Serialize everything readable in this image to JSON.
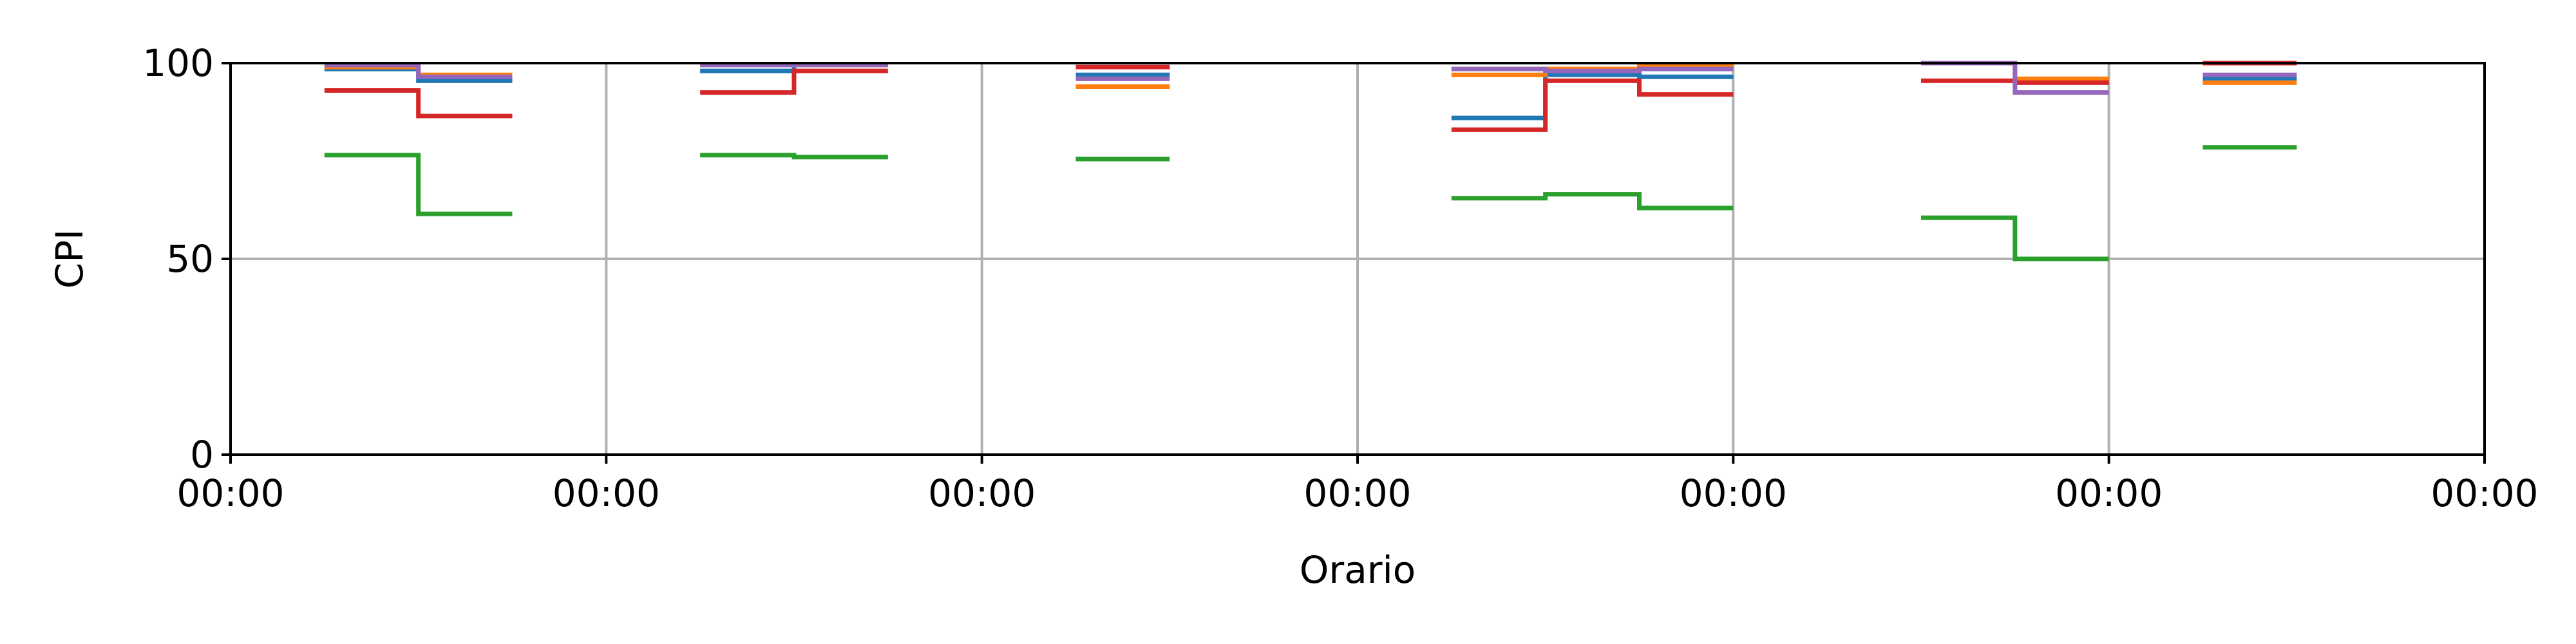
{
  "chart_data": {
    "type": "line",
    "step": "post",
    "title": "",
    "xlabel": "Orario",
    "ylabel": "CPI",
    "xlim": [
      0,
      72
    ],
    "ylim": [
      0,
      100
    ],
    "x_ticks": [
      0,
      12,
      24,
      36,
      48,
      60,
      72
    ],
    "x_tick_labels": [
      "00:00",
      "00:00",
      "00:00",
      "00:00",
      "00:00",
      "00:00",
      "00:00"
    ],
    "y_ticks": [
      0,
      50,
      100
    ],
    "y_tick_labels": [
      "0",
      "50",
      "100"
    ],
    "grid": true,
    "legend": null,
    "series": [
      {
        "color": "#1f77b4",
        "segments": [
          {
            "x": [
              3,
              6,
              9
            ],
            "y": [
              98.5,
              95.5,
              95.5
            ]
          },
          {
            "x": [
              15,
              18,
              21
            ],
            "y": [
              98,
              99.5,
              99.5
            ]
          },
          {
            "x": [
              27,
              30
            ],
            "y": [
              97,
              97
            ]
          },
          {
            "x": [
              39,
              42,
              45,
              48
            ],
            "y": [
              86,
              97,
              96.5,
              96.5
            ]
          },
          {
            "x": [
              63,
              66
            ],
            "y": [
              96,
              96
            ]
          }
        ]
      },
      {
        "color": "#ff7f0e",
        "segments": [
          {
            "x": [
              3,
              6,
              9
            ],
            "y": [
              99,
              97,
              97
            ]
          },
          {
            "x": [
              15,
              18,
              21
            ],
            "y": [
              99.5,
              99.5,
              99.5
            ]
          },
          {
            "x": [
              27,
              30
            ],
            "y": [
              94,
              94
            ]
          },
          {
            "x": [
              39,
              42,
              45,
              48
            ],
            "y": [
              97,
              98.5,
              99.5,
              99.5
            ]
          },
          {
            "x": [
              54,
              57,
              60
            ],
            "y": [
              100,
              96,
              96
            ]
          },
          {
            "x": [
              63,
              66
            ],
            "y": [
              95,
              95
            ]
          }
        ]
      },
      {
        "color": "#2ca02c",
        "segments": [
          {
            "x": [
              3,
              6,
              9
            ],
            "y": [
              76.5,
              61.5,
              61.5
            ]
          },
          {
            "x": [
              15,
              18,
              21
            ],
            "y": [
              76.5,
              76,
              76
            ]
          },
          {
            "x": [
              27,
              30
            ],
            "y": [
              75.5,
              75.5
            ]
          },
          {
            "x": [
              39,
              42,
              45,
              48
            ],
            "y": [
              65.5,
              66.5,
              63,
              63
            ]
          },
          {
            "x": [
              54,
              57,
              60
            ],
            "y": [
              60.5,
              50,
              50
            ]
          },
          {
            "x": [
              63,
              66
            ],
            "y": [
              78.5,
              78.5
            ]
          }
        ]
      },
      {
        "color": "#d62728",
        "segments": [
          {
            "x": [
              3,
              6,
              9
            ],
            "y": [
              93,
              86.5,
              86.5
            ]
          },
          {
            "x": [
              15,
              18,
              21
            ],
            "y": [
              92.5,
              98,
              98
            ]
          },
          {
            "x": [
              27,
              30
            ],
            "y": [
              99,
              99
            ]
          },
          {
            "x": [
              39,
              42,
              45,
              48
            ],
            "y": [
              83,
              95.5,
              92,
              92
            ]
          },
          {
            "x": [
              54,
              57,
              60
            ],
            "y": [
              95.5,
              95,
              95
            ]
          },
          {
            "x": [
              63,
              66
            ],
            "y": [
              100,
              100
            ]
          }
        ]
      },
      {
        "color": "#9467bd",
        "segments": [
          {
            "x": [
              3,
              6,
              9
            ],
            "y": [
              99.5,
              96.5,
              96.5
            ]
          },
          {
            "x": [
              15,
              18,
              21
            ],
            "y": [
              99.5,
              99.5,
              99.5
            ]
          },
          {
            "x": [
              27,
              30
            ],
            "y": [
              96,
              96
            ]
          },
          {
            "x": [
              39,
              42,
              45,
              48
            ],
            "y": [
              98.5,
              98,
              98.5,
              98.5
            ]
          },
          {
            "x": [
              54,
              57,
              60
            ],
            "y": [
              100,
              92.5,
              92.5
            ]
          },
          {
            "x": [
              63,
              66
            ],
            "y": [
              97,
              97
            ]
          }
        ]
      }
    ]
  }
}
